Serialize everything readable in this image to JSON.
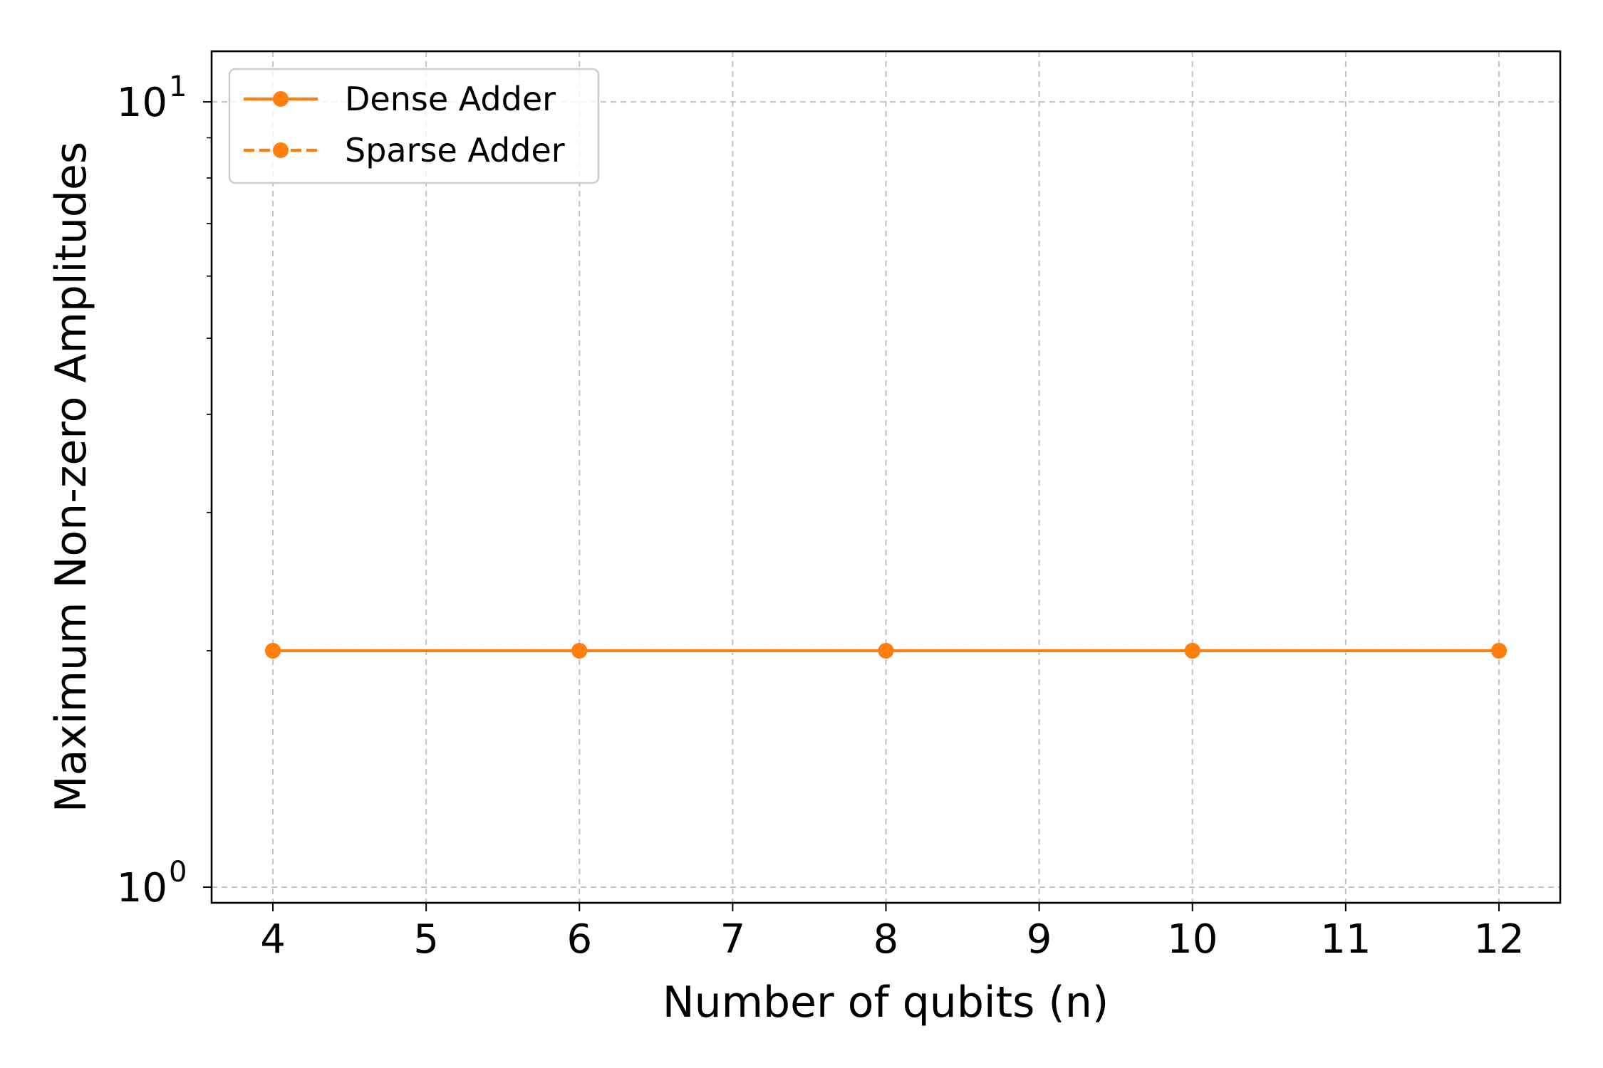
{
  "chart_data": {
    "type": "line",
    "title": "",
    "xlabel": "Number of qubits (n)",
    "ylabel": "Maximum Non-zero Amplitudes",
    "x": [
      4,
      6,
      8,
      10,
      12
    ],
    "x_ticks": [
      4,
      5,
      6,
      7,
      8,
      9,
      10,
      11,
      12
    ],
    "x_tick_labels": [
      "4",
      "5",
      "6",
      "7",
      "8",
      "9",
      "10",
      "11",
      "12"
    ],
    "xlim": [
      3.6,
      12.4
    ],
    "y_scale": "log",
    "ylim": [
      0.955,
      11.6
    ],
    "y_ticks": [
      1,
      10
    ],
    "y_tick_base": "10",
    "y_tick_exponents": [
      "0",
      "1"
    ],
    "grid": true,
    "legend_position": "upper-left",
    "series": [
      {
        "name": "Dense Adder",
        "values": [
          2,
          2,
          2,
          2,
          2
        ],
        "color": "#ff7f0e",
        "line_style": "solid",
        "marker": "circle"
      },
      {
        "name": "Sparse Adder",
        "values": [
          2,
          2,
          2,
          2,
          2
        ],
        "color": "#ff7f0e",
        "line_style": "dashed",
        "marker": "circle"
      }
    ]
  }
}
